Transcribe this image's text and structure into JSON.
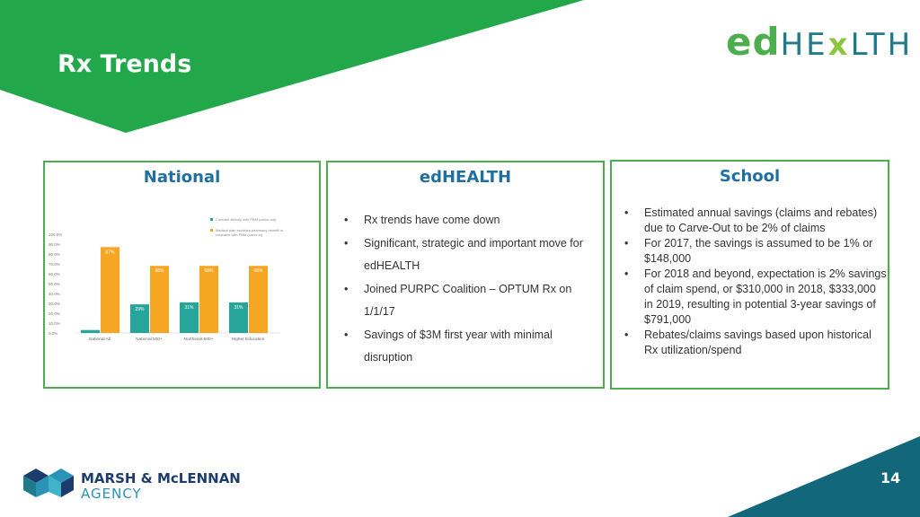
{
  "header": {
    "title": "Rx Trends",
    "page_number": "14"
  },
  "logo": {
    "ed": "ed",
    "he": "HE",
    "x": "x",
    "lth": "LTH"
  },
  "footer": {
    "company_line1": "MARSH & McLENNAN",
    "company_line2": "AGENCY"
  },
  "colors": {
    "green": "#4cae4f",
    "teal": "#1f7a8a",
    "title_blue": "#1f6fa0",
    "bar_teal": "#26a69a",
    "bar_orange": "#f5a623"
  },
  "panels": {
    "national": {
      "heading": "National",
      "chart_data": {
        "type": "bar",
        "categories": [
          "National All",
          "National 500+",
          "Northeast 500+",
          "Higher Education"
        ],
        "series": [
          {
            "name": "Contract directly with PBM (carve-out)",
            "values": [
              3,
              29,
              31,
              31
            ],
            "labels": [
              "",
              "29%",
              "31%",
              "31%"
            ]
          },
          {
            "name": "Medical plan provides pharmacy benefit or contracts with PBM (carve-in)",
            "values": [
              87,
              68,
              68,
              68
            ],
            "labels": [
              "87%",
              "68%",
              "68%",
              "68%"
            ]
          }
        ],
        "yticks": [
          "100.0%",
          "90.0%",
          "80.0%",
          "70.0%",
          "60.0%",
          "50.0%",
          "40.0%",
          "30.0%",
          "20.0%",
          "10.0%",
          "0.0%"
        ],
        "ylim": [
          0,
          100
        ]
      }
    },
    "edhealth": {
      "heading": "edHEALTH",
      "bullets": [
        "Rx trends have come down",
        "Significant, strategic and important move for edHEALTH",
        "Joined PURPC Coalition – OPTUM Rx on 1/1/17",
        "Savings of $3M first year with minimal disruption"
      ]
    },
    "school": {
      "heading": "School",
      "bullets": [
        "Estimated annual savings (claims and rebates) due to Carve-Out to be 2% of claims",
        "For 2017, the savings is assumed to be 1% or $148,000",
        "For 2018 and beyond, expectation is 2% savings of claim spend, or $310,000  in 2018, $333,000 in 2019, resulting in potential 3-year savings of $791,000",
        "Rebates/claims savings based upon historical Rx utilization/spend"
      ]
    }
  }
}
